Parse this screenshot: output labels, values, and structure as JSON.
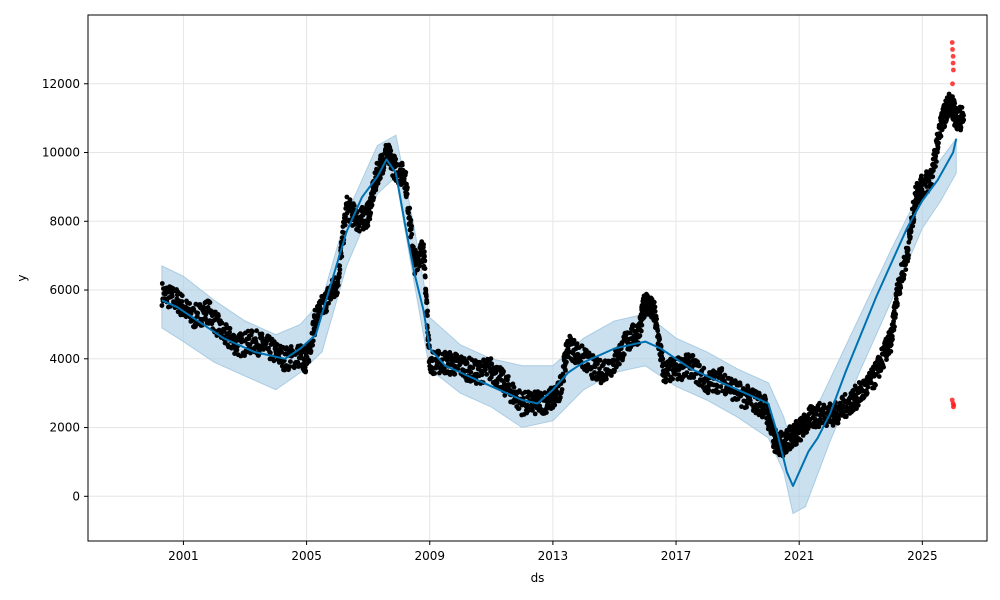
{
  "chart_data": {
    "type": "scatter",
    "title": "",
    "xlabel": "ds",
    "ylabel": "y",
    "xlim": [
      1997.9,
      2027.1
    ],
    "ylim": [
      -1300,
      14000
    ],
    "grid": true,
    "legend": "none",
    "x_ticks": [
      2001,
      2005,
      2009,
      2013,
      2017,
      2021,
      2025
    ],
    "y_ticks": [
      0,
      2000,
      4000,
      6000,
      8000,
      10000,
      12000
    ],
    "colors": {
      "observed": "#000000",
      "forecast": "#0072B2",
      "interval": "#a9cce3",
      "outlier": "#ff2020",
      "grid": "#e6e6e6"
    },
    "series": [
      {
        "kind": "observed points",
        "x": [
          2000.3,
          2000.8,
          2001.3,
          2001.8,
          2002.3,
          2002.8,
          2003.3,
          2003.8,
          2004.3,
          2004.8,
          2005.0,
          2005.3,
          2005.7,
          2006.0,
          2006.3,
          2006.7,
          2007.0,
          2007.3,
          2007.6,
          2007.9,
          2008.2,
          2008.5,
          2008.8,
          2009.0,
          2009.5,
          2010.0,
          2010.5,
          2011.0,
          2011.5,
          2012.0,
          2012.5,
          2012.9,
          2013.2,
          2013.5,
          2014.0,
          2014.5,
          2015.0,
          2015.4,
          2015.8,
          2016.0,
          2016.3,
          2016.6,
          2017.0,
          2017.5,
          2018.0,
          2018.5,
          2019.0,
          2019.5,
          2019.9,
          2020.2,
          2020.5,
          2020.8,
          2021.0,
          2021.4,
          2021.8,
          2022.2,
          2022.6,
          2023.0,
          2023.4,
          2023.8,
          2024.0,
          2024.2,
          2024.5,
          2024.8,
          2025.0,
          2025.3,
          2025.6,
          2025.9,
          2026.1
        ],
        "y": [
          5900,
          5700,
          5200,
          5400,
          4700,
          4400,
          4500,
          4300,
          4000,
          4100,
          3900,
          5200,
          5800,
          6200,
          8400,
          8000,
          8200,
          9400,
          10000,
          9500,
          9300,
          6800,
          7200,
          3900,
          3900,
          3800,
          3600,
          3700,
          3200,
          2700,
          2700,
          2800,
          3000,
          4400,
          4000,
          3600,
          3900,
          4500,
          4800,
          5700,
          5300,
          3600,
          3700,
          3800,
          3300,
          3400,
          3000,
          2800,
          2600,
          1600,
          1500,
          1800,
          1900,
          2300,
          2400,
          2400,
          2700,
          3000,
          3400,
          4200,
          4600,
          6000,
          7000,
          8800,
          9000,
          9300,
          10800,
          11500,
          11000
        ]
      },
      {
        "kind": "forecast line",
        "x": [
          2000.3,
          2000.8,
          2001.3,
          2001.8,
          2002.3,
          2002.8,
          2003.3,
          2003.8,
          2004.3,
          2004.8,
          2005.3,
          2005.8,
          2006.3,
          2006.8,
          2007.3,
          2007.6,
          2007.9,
          2008.2,
          2008.5,
          2008.8,
          2009.0,
          2009.5,
          2010.0,
          2010.5,
          2011.0,
          2011.5,
          2012.0,
          2012.5,
          2013.0,
          2013.5,
          2014.0,
          2014.5,
          2015.0,
          2015.5,
          2016.0,
          2016.5,
          2017.0,
          2017.5,
          2018.0,
          2018.5,
          2019.0,
          2019.5,
          2020.0,
          2020.3,
          2020.6,
          2020.8,
          2021.0,
          2021.3,
          2021.6,
          2022.0,
          2022.5,
          2023.0,
          2023.5,
          2024.0,
          2024.5,
          2025.0,
          2025.5,
          2026.0,
          2026.1
        ],
        "y": [
          5700,
          5500,
          5200,
          4900,
          4600,
          4400,
          4200,
          4100,
          4000,
          4300,
          4700,
          6200,
          7700,
          8700,
          9300,
          9800,
          9400,
          7900,
          6500,
          5400,
          4300,
          3800,
          3600,
          3400,
          3200,
          3000,
          2800,
          2700,
          3100,
          3600,
          3900,
          4100,
          4300,
          4400,
          4500,
          4300,
          4000,
          3700,
          3500,
          3300,
          3100,
          2900,
          2700,
          1800,
          700,
          300,
          700,
          1300,
          1700,
          2400,
          3600,
          4700,
          5800,
          6800,
          7800,
          8600,
          9200,
          10000,
          10400
        ]
      },
      {
        "kind": "uncertainty upper",
        "x": [
          2000.3,
          2001.0,
          2002.0,
          2003.0,
          2004.0,
          2004.8,
          2005.5,
          2006.3,
          2007.3,
          2007.9,
          2008.5,
          2009.0,
          2010.0,
          2011.0,
          2012.0,
          2013.0,
          2014.0,
          2015.0,
          2016.0,
          2017.0,
          2018.0,
          2019.0,
          2020.0,
          2020.5,
          2020.8,
          2021.2,
          2022.0,
          2023.0,
          2024.0,
          2025.0,
          2025.6,
          2026.1
        ],
        "y": [
          6700,
          6400,
          5700,
          5100,
          4700,
          5000,
          5700,
          8200,
          10200,
          10500,
          7800,
          5200,
          4400,
          4000,
          3800,
          3800,
          4600,
          5100,
          5300,
          4600,
          4200,
          3700,
          3300,
          2300,
          1400,
          1900,
          3400,
          5300,
          7200,
          9000,
          9800,
          10400
        ]
      },
      {
        "kind": "uncertainty lower",
        "x": [
          2000.3,
          2001.0,
          2002.0,
          2003.0,
          2004.0,
          2004.8,
          2005.5,
          2006.3,
          2007.3,
          2007.9,
          2008.5,
          2009.0,
          2010.0,
          2011.0,
          2012.0,
          2013.0,
          2014.0,
          2015.0,
          2016.0,
          2017.0,
          2018.0,
          2019.0,
          2020.0,
          2020.5,
          2020.8,
          2021.2,
          2022.0,
          2023.0,
          2024.0,
          2025.0,
          2025.6,
          2026.1
        ],
        "y": [
          4900,
          4500,
          3900,
          3500,
          3100,
          3600,
          4200,
          6700,
          8800,
          9300,
          6200,
          3700,
          3000,
          2600,
          2000,
          2200,
          3100,
          3600,
          3800,
          3200,
          2800,
          2300,
          1700,
          700,
          -500,
          -300,
          1600,
          3700,
          5700,
          7800,
          8600,
          9400
        ]
      },
      {
        "kind": "outliers",
        "x": [
          2025.97,
          2025.98,
          2026.0,
          2026.0,
          2026.01,
          2025.98,
          2025.97,
          2026.0,
          2026.02,
          2026.01
        ],
        "y": [
          13200,
          13000,
          12800,
          12600,
          12400,
          12000,
          2800,
          2700,
          2650,
          2600
        ]
      }
    ]
  }
}
